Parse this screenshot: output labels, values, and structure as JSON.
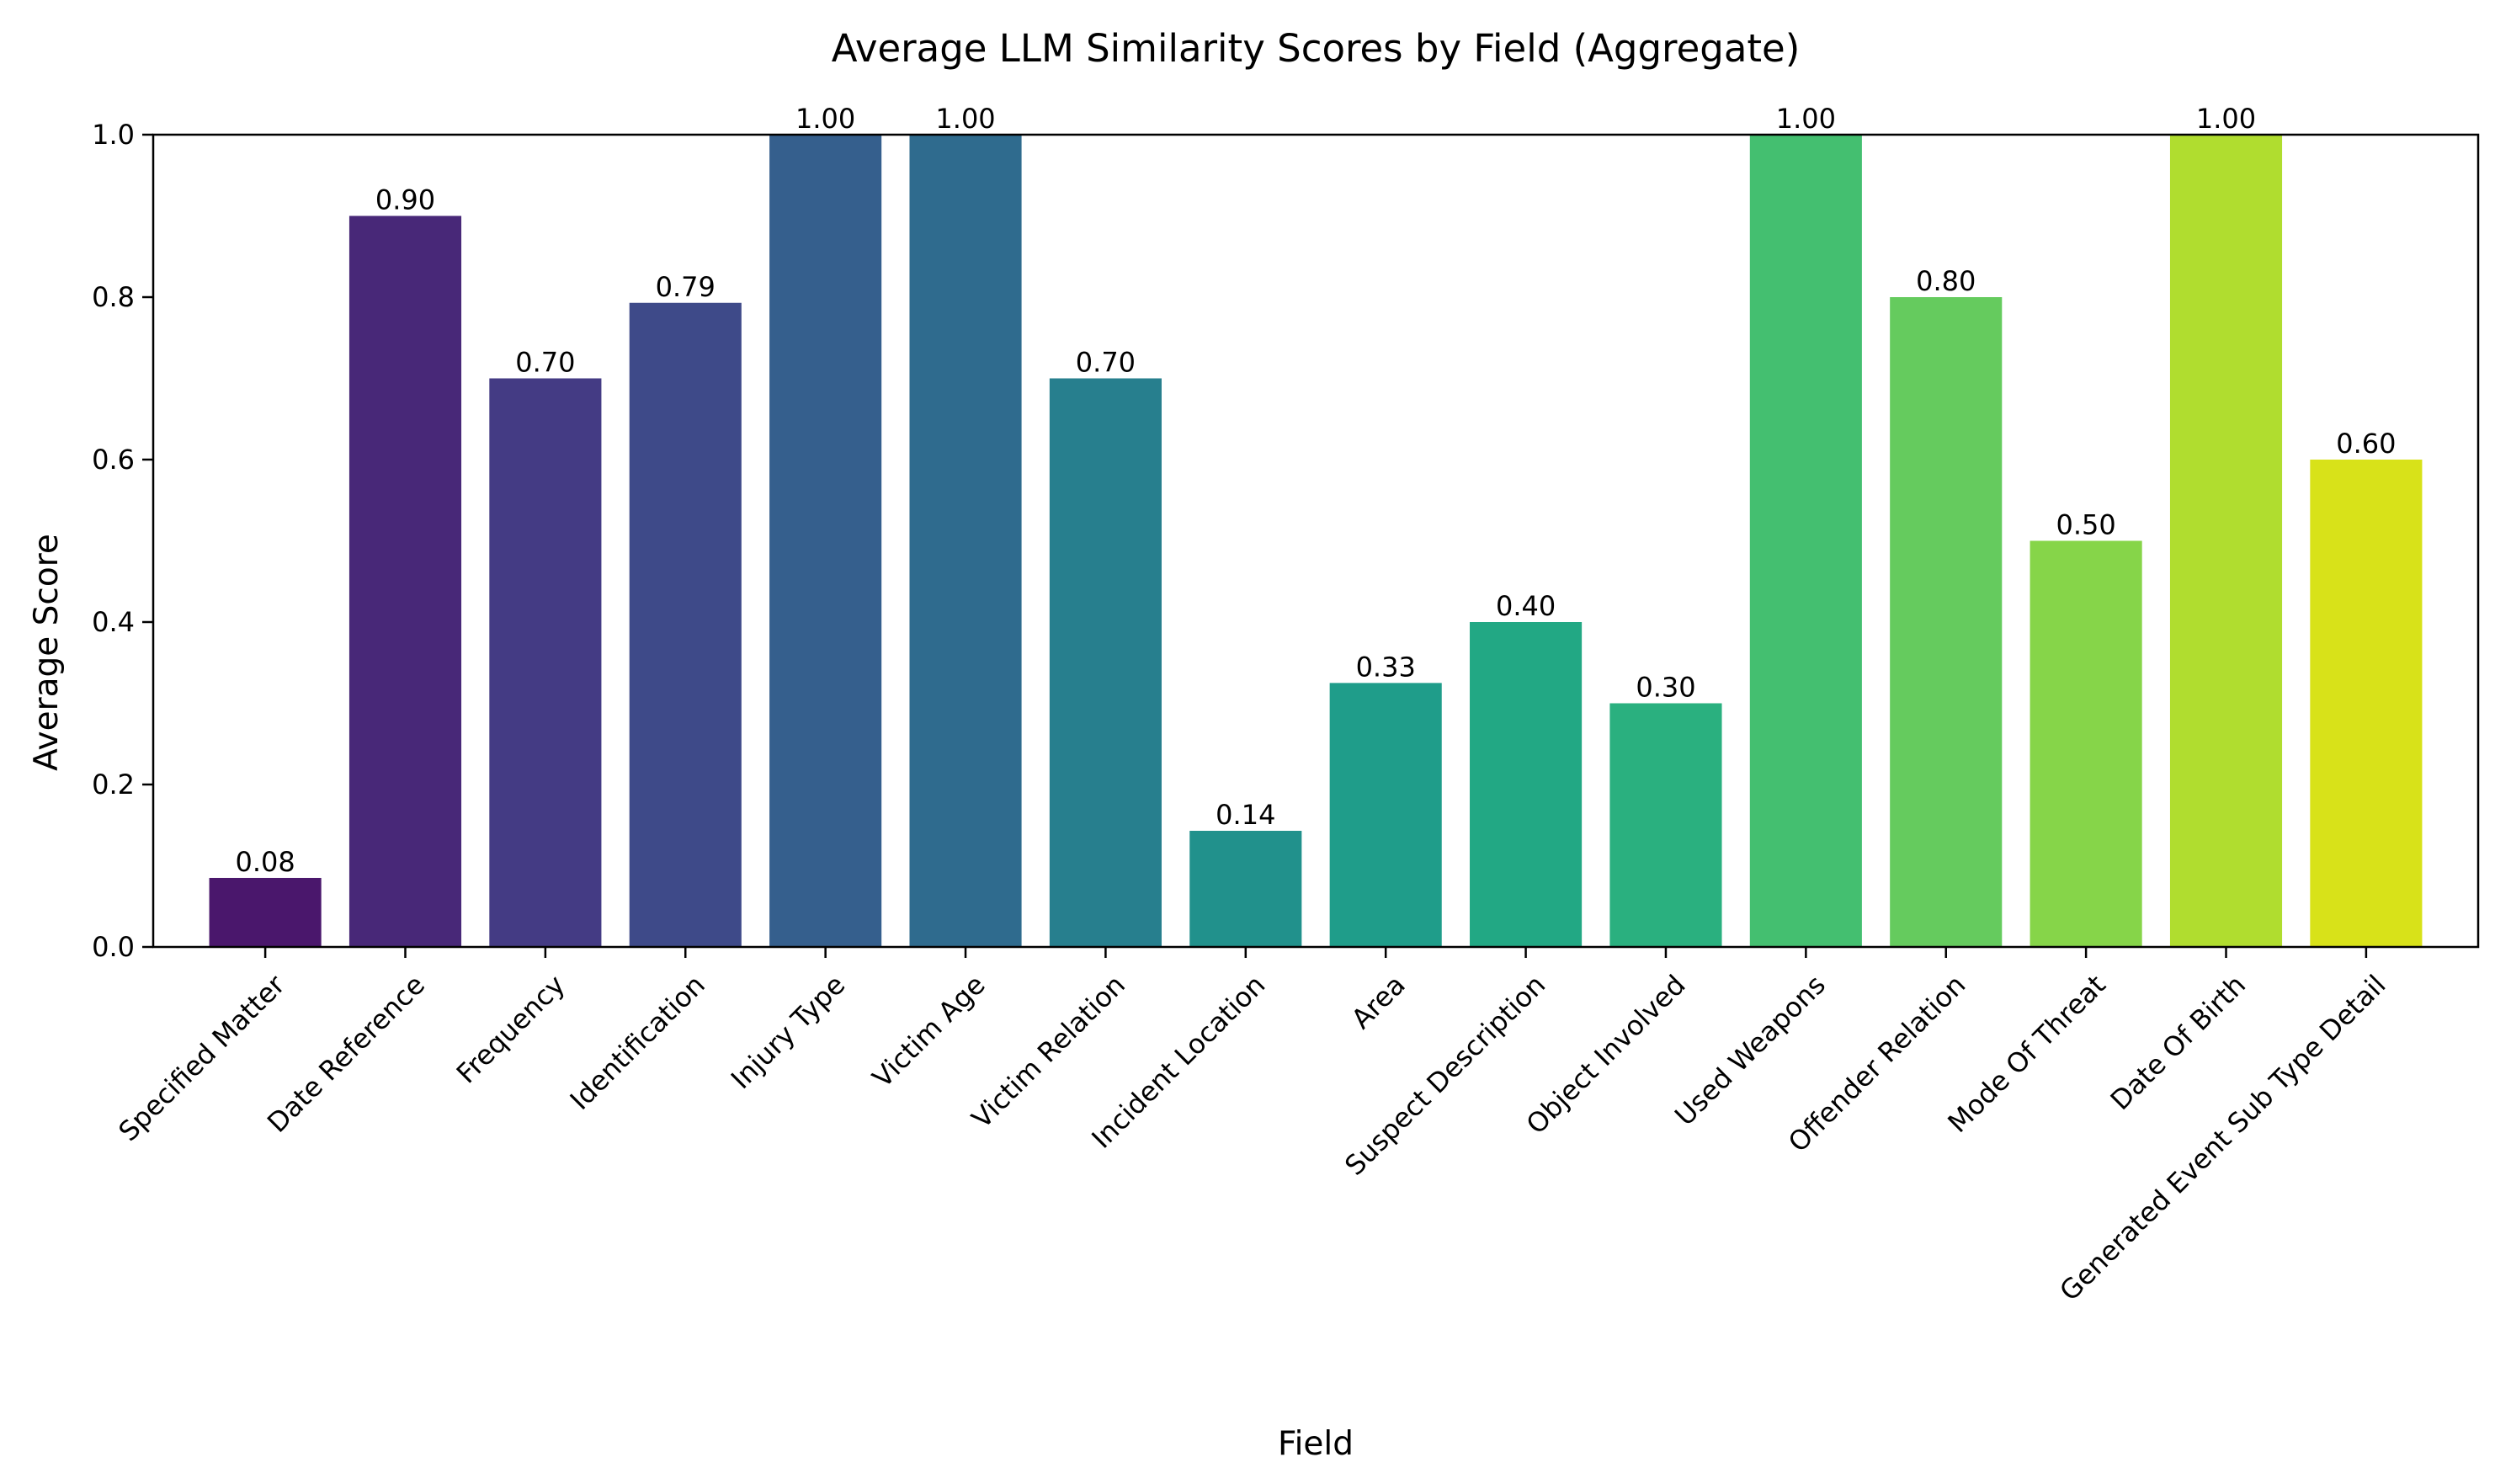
{
  "chart_data": {
    "type": "bar",
    "title": "Average LLM Similarity Scores by Field (Aggregate)",
    "xlabel": "Field",
    "ylabel": "Average Score",
    "ylim": [
      0,
      1.0
    ],
    "yticks": [
      "0.0",
      "0.2",
      "0.4",
      "0.6",
      "0.8",
      "1.0"
    ],
    "grid": false,
    "categories": [
      "Specified Matter",
      "Date Reference",
      "Frequency",
      "Identification",
      "Injury Type",
      "Victim Age",
      "Victim Relation",
      "Incident Location",
      "Area",
      "Suspect Description",
      "Object Involved",
      "Used Weapons",
      "Offender Relation",
      "Mode Of Threat",
      "Date Of Birth",
      "Generated Event Sub Type Detail"
    ],
    "values": [
      0.085,
      0.9,
      0.7,
      0.793,
      1.0,
      1.0,
      0.7,
      0.143,
      0.325,
      0.4,
      0.3,
      1.0,
      0.8,
      0.5,
      1.0,
      0.6
    ],
    "value_labels": [
      "0.08",
      "0.90",
      "0.70",
      "0.79",
      "1.00",
      "1.00",
      "0.70",
      "0.14",
      "0.33",
      "0.40",
      "0.30",
      "1.00",
      "0.80",
      "0.50",
      "1.00",
      "0.60"
    ],
    "colors": [
      "#4a176c",
      "#482878",
      "#443b84",
      "#3e4a89",
      "#355f8d",
      "#2f6b8e",
      "#277f8e",
      "#21918c",
      "#1f9d8a",
      "#22a884",
      "#2ab07f",
      "#44bf70",
      "#65cb5e",
      "#86d549",
      "#b0dd2f",
      "#d8e219"
    ]
  }
}
